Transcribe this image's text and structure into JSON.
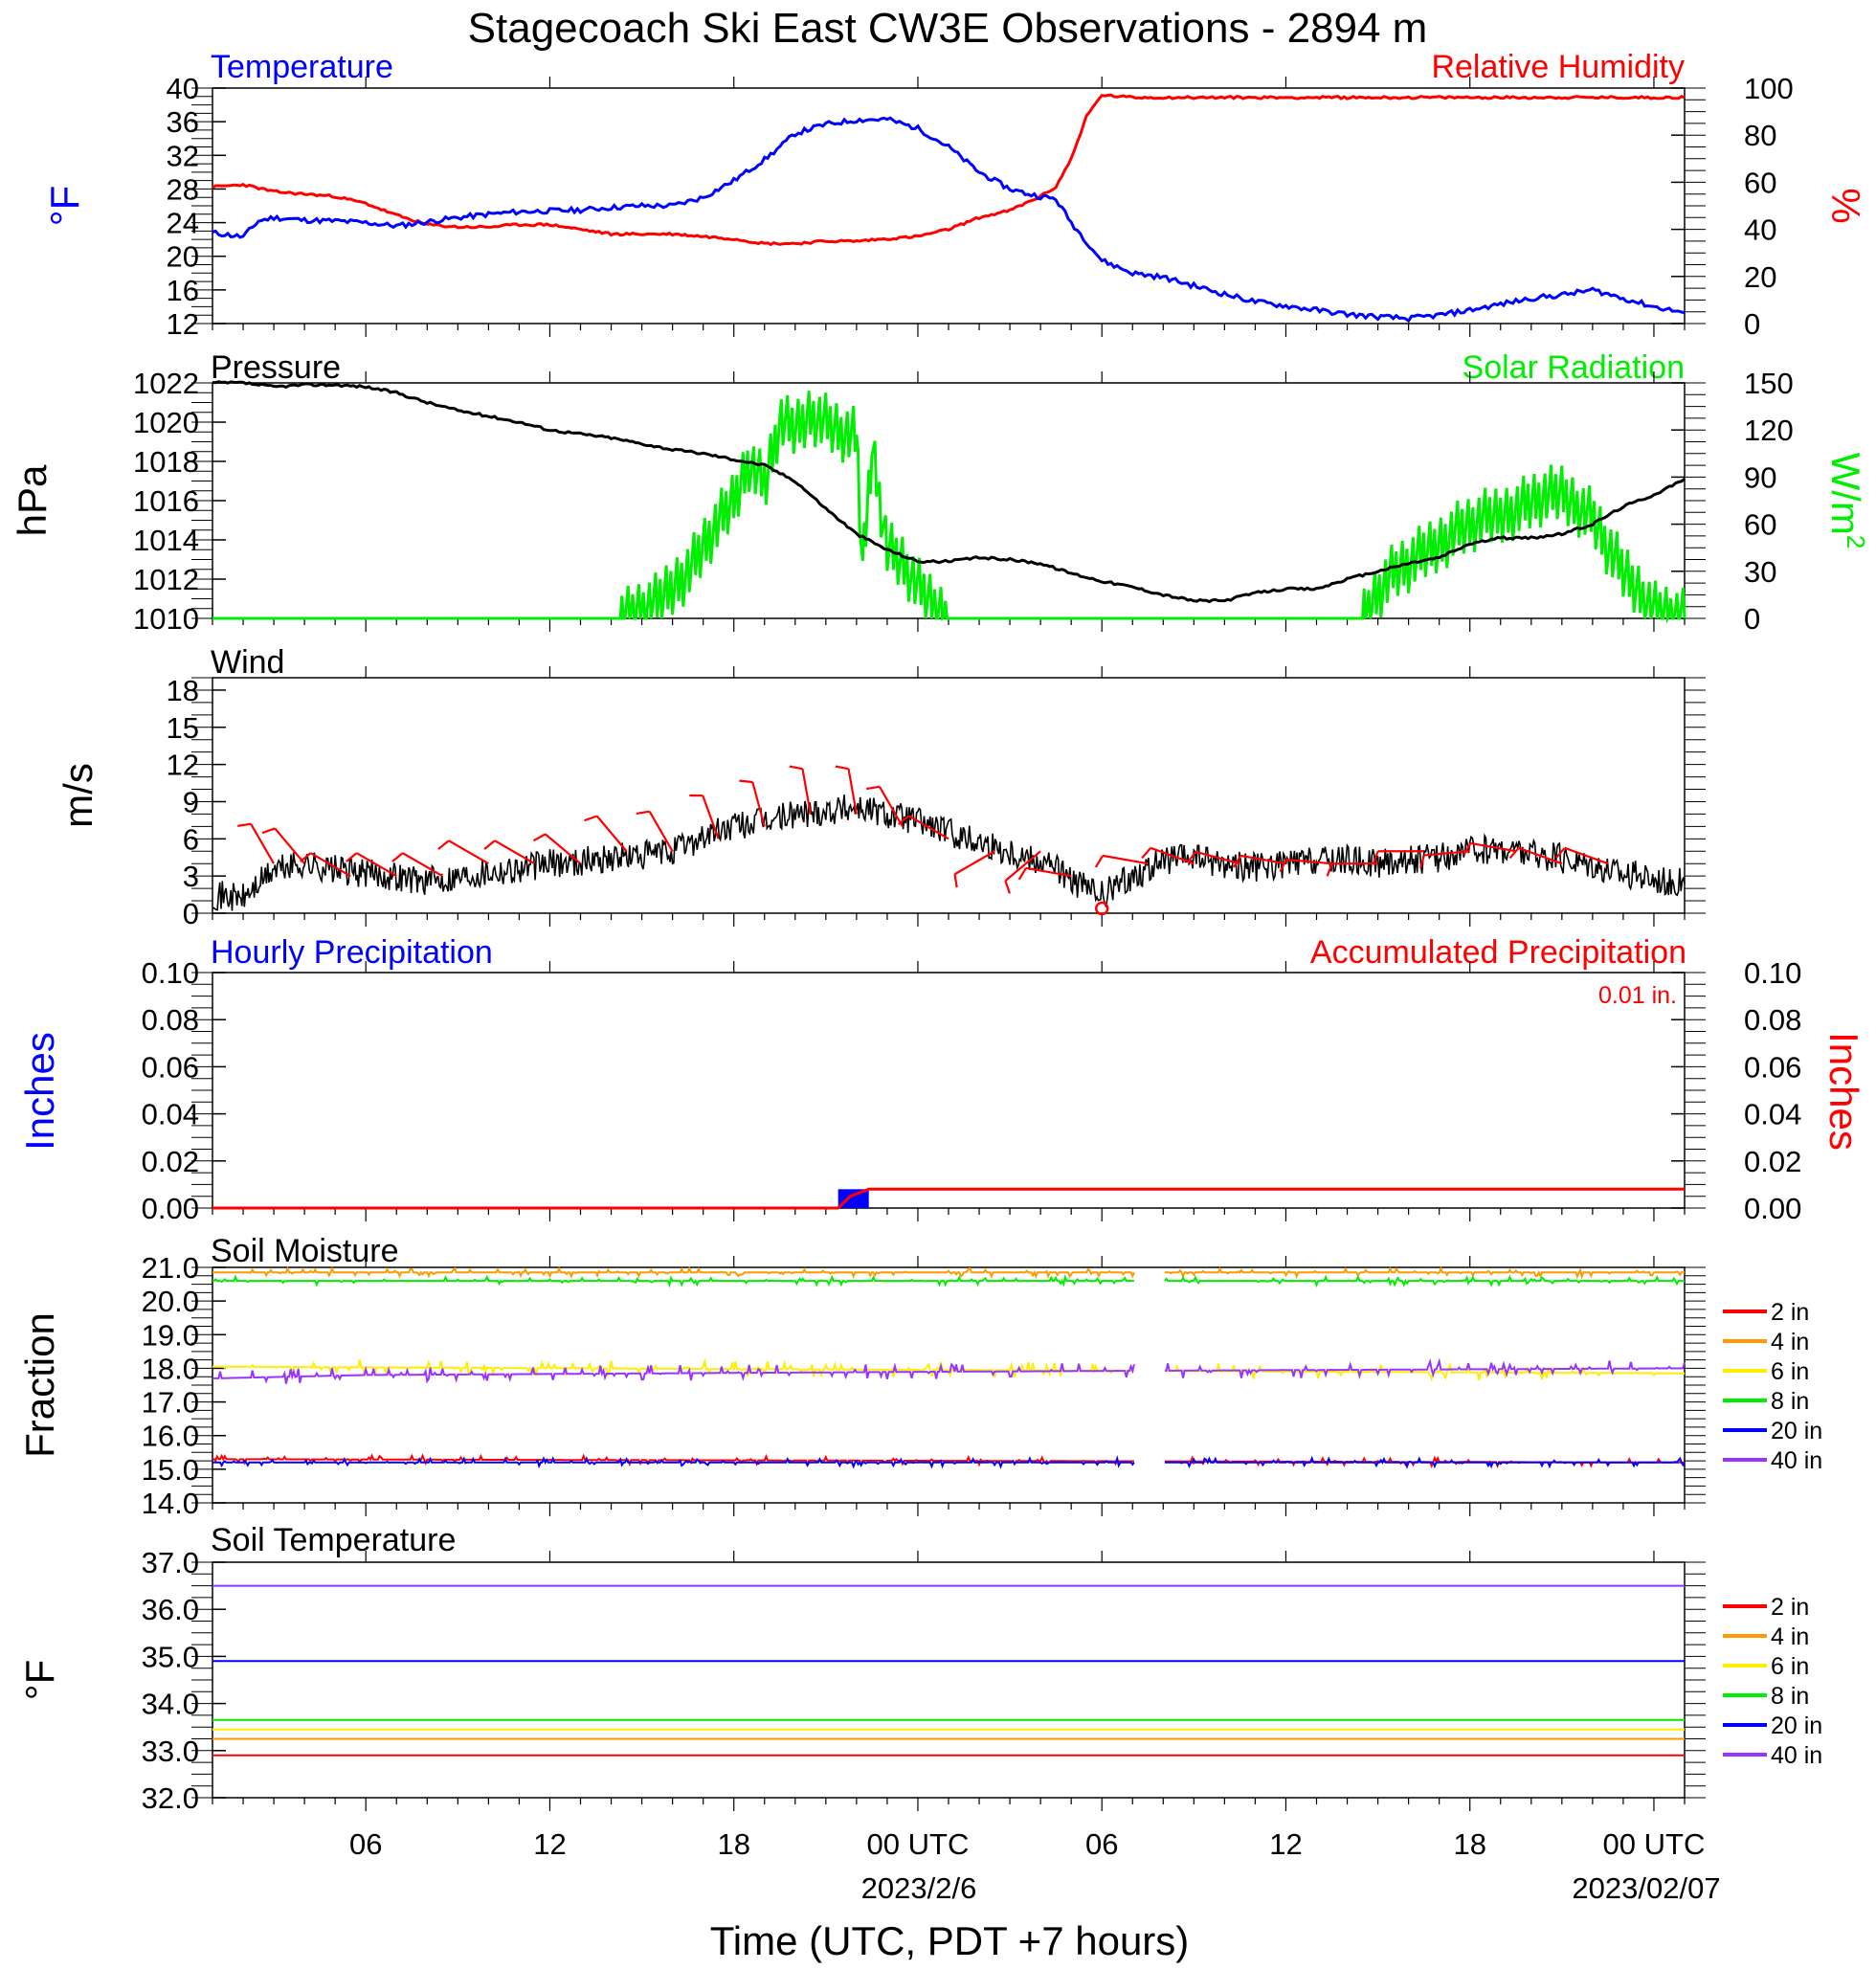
{
  "title": "Stagecoach Ski East CW3E Observations - 2894 m",
  "x_axis": {
    "label": "Time (UTC, PDT +7 hours)",
    "ticks": [
      "06",
      "12",
      "18",
      "00 UTC",
      "06",
      "12",
      "18",
      "00 UTC"
    ],
    "date_labels": [
      "2023/2/6",
      "2023/02/07"
    ]
  },
  "panels": {
    "temperature": {
      "title_left": "Temperature",
      "title_right": "Relative Humidity",
      "ylabel_left": "°F",
      "ylabel_right": "%",
      "left_ticks": [
        "12",
        "16",
        "20",
        "24",
        "28",
        "32",
        "36",
        "40"
      ],
      "right_ticks": [
        "0",
        "20",
        "40",
        "60",
        "80",
        "100"
      ]
    },
    "pressure": {
      "title_left": "Pressure",
      "title_right": "Solar Radiation",
      "ylabel_left": "hPa",
      "ylabel_right": "W/m",
      "ylabel_right_sup": "2",
      "left_ticks": [
        "1010",
        "1012",
        "1014",
        "1016",
        "1018",
        "1020",
        "1022"
      ],
      "right_ticks": [
        "0",
        "30",
        "60",
        "90",
        "120",
        "150"
      ]
    },
    "wind": {
      "title_left": "Wind",
      "ylabel_left": "m/s",
      "left_ticks": [
        "0",
        "3",
        "6",
        "9",
        "12",
        "15",
        "18"
      ]
    },
    "precip": {
      "title_left": "Hourly Precipitation",
      "title_right": "Accumulated Precipitation",
      "total_label": "0.01 in.",
      "ylabel_left": "Inches",
      "ylabel_right": "Inches",
      "left_ticks": [
        "0.00",
        "0.02",
        "0.04",
        "0.06",
        "0.08",
        "0.10"
      ],
      "right_ticks": [
        "0.00",
        "0.02",
        "0.04",
        "0.06",
        "0.08",
        "0.10"
      ]
    },
    "soil_moisture": {
      "title_left": "Soil Moisture",
      "ylabel_left": "Fraction",
      "left_ticks": [
        "14.0",
        "15.0",
        "16.0",
        "17.0",
        "18.0",
        "19.0",
        "20.0",
        "21.0"
      ],
      "legend": [
        "2 in",
        "4 in",
        "6 in",
        "8 in",
        "20 in",
        "40 in"
      ]
    },
    "soil_temperature": {
      "title_left": "Soil Temperature",
      "ylabel_left": "°F",
      "left_ticks": [
        "32.0",
        "33.0",
        "34.0",
        "35.0",
        "36.0",
        "37.0"
      ],
      "legend": [
        "2 in",
        "4 in",
        "6 in",
        "8 in",
        "20 in",
        "40 in"
      ]
    }
  },
  "colors": {
    "temperature": "#0000ff",
    "humidity": "#ff0000",
    "pressure": "#000000",
    "solar": "#00ee00",
    "wind_speed": "#000000",
    "wind_barb": "#ff0000",
    "hourly_precip": "#0000ff",
    "accum_precip": "#ff0000",
    "depth_2in": "#ff0000",
    "depth_4in": "#ff9900",
    "depth_6in": "#ffee00",
    "depth_8in": "#00ee00",
    "depth_20in": "#0000ff",
    "depth_40in": "#9933ff"
  },
  "chart_data": [
    {
      "type": "line",
      "panel": "temperature",
      "x_unit": "hours since 2023-02-05 01 UTC",
      "xlim": [
        0,
        48
      ],
      "ylim_left": [
        12,
        40
      ],
      "ylim_right": [
        0,
        100
      ],
      "series": [
        {
          "name": "Temperature",
          "axis": "left",
          "color": "#0000ff",
          "x": [
            0,
            1,
            1.5,
            2,
            3,
            4,
            5,
            6,
            7,
            8,
            9,
            10,
            11,
            12,
            13,
            14,
            15,
            16,
            17,
            18,
            18.5,
            19,
            20,
            21,
            22,
            23,
            24,
            25,
            26,
            26.5,
            27,
            27.5,
            28,
            29,
            30,
            31,
            32,
            33,
            34,
            35,
            36,
            37,
            38,
            39,
            40,
            41,
            42,
            43,
            44,
            45,
            46,
            47,
            48
          ],
          "y": [
            22.8,
            22.3,
            24.2,
            24.6,
            24.3,
            24.2,
            24.0,
            23.6,
            24.1,
            24.6,
            25.0,
            25.3,
            25.4,
            25.5,
            25.8,
            26.0,
            26.0,
            27.0,
            29.0,
            31.5,
            33.0,
            34.6,
            35.7,
            36.2,
            36.3,
            35.2,
            33.0,
            30.0,
            28.0,
            27.5,
            27.1,
            26.8,
            24.0,
            19.5,
            18.0,
            17.5,
            16.5,
            15.5,
            14.6,
            14.1,
            13.6,
            13.1,
            12.8,
            12.6,
            13.0,
            13.6,
            14.3,
            15.0,
            15.4,
            16.0,
            15.0,
            14.0,
            13.3
          ]
        },
        {
          "name": "Relative Humidity",
          "axis": "right",
          "color": "#ff0000",
          "x": [
            0,
            1,
            2,
            3,
            4,
            5,
            6,
            7,
            8,
            9,
            10,
            11,
            12,
            13,
            14,
            15,
            16,
            17,
            18,
            19,
            20,
            21,
            22,
            23,
            24,
            25,
            26,
            27,
            27.5,
            28,
            28.5,
            29,
            30,
            32,
            36,
            40,
            44,
            48
          ],
          "y": [
            58,
            59,
            56,
            55,
            54,
            51,
            46,
            42,
            41,
            41,
            42,
            42,
            40,
            38,
            38,
            38,
            37,
            36,
            34,
            34,
            35,
            35,
            36,
            37,
            40,
            45,
            48,
            54,
            58,
            70,
            88,
            97,
            96,
            96,
            96,
            96,
            96,
            96
          ]
        }
      ]
    },
    {
      "type": "line",
      "panel": "pressure",
      "x_unit": "hours since 2023-02-05 01 UTC",
      "xlim": [
        0,
        48
      ],
      "ylim_left": [
        1010,
        1022
      ],
      "ylim_right": [
        0,
        150
      ],
      "series": [
        {
          "name": "Pressure",
          "axis": "left",
          "color": "#000000",
          "x": [
            0,
            1,
            2,
            3,
            4,
            5,
            6,
            7,
            8,
            9,
            10,
            11,
            12,
            13,
            14,
            15,
            16,
            17,
            18,
            19,
            20,
            21,
            22,
            23,
            24,
            25,
            26,
            27,
            28,
            29,
            30,
            31,
            32,
            33,
            34,
            35,
            36,
            37,
            38,
            39,
            40,
            41,
            42,
            43,
            44,
            45,
            46,
            47,
            48
          ],
          "y": [
            1022.0,
            1022.0,
            1021.8,
            1021.9,
            1021.9,
            1021.8,
            1021.5,
            1021.0,
            1020.6,
            1020.3,
            1020.0,
            1019.6,
            1019.4,
            1019.2,
            1018.9,
            1018.6,
            1018.4,
            1018.1,
            1017.8,
            1017.0,
            1015.6,
            1014.3,
            1013.5,
            1012.9,
            1012.9,
            1013.1,
            1013.0,
            1012.8,
            1012.3,
            1011.9,
            1011.6,
            1011.2,
            1010.9,
            1010.9,
            1011.3,
            1011.5,
            1011.5,
            1012.0,
            1012.4,
            1012.8,
            1013.1,
            1013.8,
            1014.1,
            1014.1,
            1014.3,
            1014.8,
            1015.7,
            1016.3,
            1017.1
          ]
        },
        {
          "name": "Solar Radiation",
          "axis": "right",
          "color": "#00ee00",
          "x": [
            0,
            13.3,
            14.5,
            15.5,
            16.3,
            17,
            17.5,
            18,
            18.5,
            19,
            19.5,
            20,
            20.5,
            21,
            21.2,
            21.5,
            22,
            22.5,
            23,
            23.5,
            24,
            37.5,
            38,
            38.5,
            39,
            39.5,
            40,
            40.5,
            41,
            41.5,
            42,
            42.5,
            43,
            43.5,
            44,
            44.5,
            45,
            45.5,
            46,
            46.5,
            47,
            48
          ],
          "y": [
            0,
            0,
            10,
            30,
            55,
            75,
            100,
            85,
            125,
            120,
            130,
            125,
            118,
            115,
            30,
            110,
            45,
            35,
            20,
            8,
            0,
            0,
            18,
            30,
            35,
            42,
            48,
            56,
            60,
            64,
            66,
            70,
            75,
            78,
            80,
            72,
            65,
            45,
            30,
            18,
            6,
            0
          ]
        }
      ]
    },
    {
      "type": "line",
      "panel": "wind",
      "x_unit": "hours since 2023-02-05 01 UTC",
      "xlim": [
        0,
        48
      ],
      "ylim": [
        0,
        19
      ],
      "series": [
        {
          "name": "Wind speed",
          "color": "#000000",
          "x": [
            0,
            1,
            2,
            3,
            4,
            5,
            6,
            7,
            8,
            9,
            10,
            11,
            12,
            13,
            14,
            15,
            16,
            17,
            18,
            19,
            20,
            21,
            22,
            23,
            24,
            25,
            26,
            27,
            27.5,
            28,
            29,
            30,
            31,
            32,
            33,
            34,
            35,
            36,
            37,
            38,
            39,
            40,
            41,
            42,
            43,
            44,
            45,
            46,
            47,
            48
          ],
          "y": [
            1.5,
            1.2,
            3.5,
            4.0,
            3.5,
            3.2,
            3.0,
            2.6,
            3.0,
            3.4,
            3.6,
            4.0,
            4.2,
            4.5,
            4.6,
            5.0,
            6.2,
            7.0,
            7.4,
            8.0,
            8.3,
            8.6,
            8.0,
            7.5,
            6.5,
            5.8,
            5.0,
            4.3,
            3.8,
            2.6,
            1.4,
            3.0,
            4.2,
            4.5,
            4.0,
            3.7,
            3.9,
            4.2,
            4.3,
            4.0,
            4.3,
            4.5,
            5.0,
            5.2,
            4.8,
            4.4,
            4.0,
            3.2,
            2.8,
            2.4
          ]
        }
      ],
      "barbs": [
        {
          "x": 2,
          "speed": 4,
          "dir_deg": 330
        },
        {
          "x": 3,
          "speed": 4,
          "dir_deg": 320
        },
        {
          "x": 4.5,
          "speed": 3,
          "dir_deg": 300
        },
        {
          "x": 6,
          "speed": 3,
          "dir_deg": 300
        },
        {
          "x": 7.5,
          "speed": 3,
          "dir_deg": 300
        },
        {
          "x": 9,
          "speed": 4,
          "dir_deg": 300
        },
        {
          "x": 10.5,
          "speed": 4,
          "dir_deg": 300
        },
        {
          "x": 12,
          "speed": 4,
          "dir_deg": 310
        },
        {
          "x": 13.5,
          "speed": 5,
          "dir_deg": 320
        },
        {
          "x": 15,
          "speed": 5,
          "dir_deg": 330
        },
        {
          "x": 16.5,
          "speed": 6,
          "dir_deg": 340
        },
        {
          "x": 18,
          "speed": 7,
          "dir_deg": 345
        },
        {
          "x": 19.5,
          "speed": 8,
          "dir_deg": 350
        },
        {
          "x": 21,
          "speed": 8,
          "dir_deg": 350
        },
        {
          "x": 22.5,
          "speed": 7,
          "dir_deg": 330
        },
        {
          "x": 24,
          "speed": 6,
          "dir_deg": 300
        },
        {
          "x": 25.5,
          "speed": 5,
          "dir_deg": 240
        },
        {
          "x": 27,
          "speed": 5,
          "dir_deg": 230
        },
        {
          "x": 28,
          "speed": 3,
          "dir_deg": 280
        },
        {
          "x": 29,
          "speed": 0,
          "dir_deg": 0
        },
        {
          "x": 30.5,
          "speed": 4,
          "dir_deg": 280
        },
        {
          "x": 32,
          "speed": 4,
          "dir_deg": 290
        },
        {
          "x": 33.5,
          "speed": 4,
          "dir_deg": 285
        },
        {
          "x": 35,
          "speed": 4,
          "dir_deg": 280
        },
        {
          "x": 36.5,
          "speed": 4,
          "dir_deg": 275
        },
        {
          "x": 38,
          "speed": 4,
          "dir_deg": 270
        },
        {
          "x": 39.5,
          "speed": 5,
          "dir_deg": 270
        },
        {
          "x": 41,
          "speed": 5,
          "dir_deg": 265
        },
        {
          "x": 42.5,
          "speed": 5,
          "dir_deg": 280
        },
        {
          "x": 44,
          "speed": 4,
          "dir_deg": 290
        },
        {
          "x": 45.5,
          "speed": 4,
          "dir_deg": 290
        }
      ]
    },
    {
      "type": "bar",
      "panel": "precip",
      "x_unit": "hours since 2023-02-05 01 UTC",
      "xlim": [
        0,
        48
      ],
      "ylim": [
        0,
        0.1
      ],
      "hourly": [
        {
          "x_start": 20.4,
          "x_end": 21.4,
          "value": 0.008
        }
      ],
      "accumulated": {
        "x": [
          0,
          20.4,
          20.8,
          21.4,
          48
        ],
        "y": [
          0,
          0,
          0.005,
          0.008,
          0.008
        ]
      }
    },
    {
      "type": "line",
      "panel": "soil_moisture",
      "x_unit": "hours since 2023-02-05 01 UTC",
      "xlim": [
        0,
        48
      ],
      "ylim": [
        14,
        21
      ],
      "gap_hours": [
        30.1,
        31.0
      ],
      "series": [
        {
          "name": "2 in",
          "color": "#ff0000",
          "x": [
            0,
            24,
            48
          ],
          "y": [
            15.3,
            15.25,
            15.2
          ]
        },
        {
          "name": "4 in",
          "color": "#ff9900",
          "x": [
            0,
            24,
            48
          ],
          "y": [
            20.85,
            20.85,
            20.85
          ]
        },
        {
          "name": "6 in",
          "color": "#ffee00",
          "x": [
            0,
            24,
            48
          ],
          "y": [
            18.05,
            17.95,
            17.85
          ]
        },
        {
          "name": "8 in",
          "color": "#00ee00",
          "x": [
            0,
            24,
            48
          ],
          "y": [
            20.6,
            20.6,
            20.6
          ]
        },
        {
          "name": "20 in",
          "color": "#0000ff",
          "x": [
            0,
            24,
            48
          ],
          "y": [
            15.2,
            15.2,
            15.2
          ]
        },
        {
          "name": "40 in",
          "color": "#9933ff",
          "x": [
            0,
            5,
            24,
            48
          ],
          "y": [
            17.7,
            17.8,
            17.9,
            18.0
          ]
        }
      ]
    },
    {
      "type": "line",
      "panel": "soil_temperature",
      "x_unit": "hours since 2023-02-05 01 UTC",
      "xlim": [
        0,
        48
      ],
      "ylim": [
        32,
        37
      ],
      "series": [
        {
          "name": "2 in",
          "color": "#ff0000",
          "x": [
            0,
            48
          ],
          "y": [
            32.9,
            32.9
          ]
        },
        {
          "name": "4 in",
          "color": "#ff9900",
          "x": [
            0,
            48
          ],
          "y": [
            33.25,
            33.25
          ]
        },
        {
          "name": "6 in",
          "color": "#ffee00",
          "x": [
            0,
            48
          ],
          "y": [
            33.45,
            33.45
          ]
        },
        {
          "name": "8 in",
          "color": "#00ee00",
          "x": [
            0,
            48
          ],
          "y": [
            33.65,
            33.65
          ]
        },
        {
          "name": "20 in",
          "color": "#0000ff",
          "x": [
            0,
            48
          ],
          "y": [
            34.9,
            34.9
          ]
        },
        {
          "name": "40 in",
          "color": "#9933ff",
          "x": [
            0,
            48
          ],
          "y": [
            36.5,
            36.5
          ]
        }
      ]
    }
  ]
}
